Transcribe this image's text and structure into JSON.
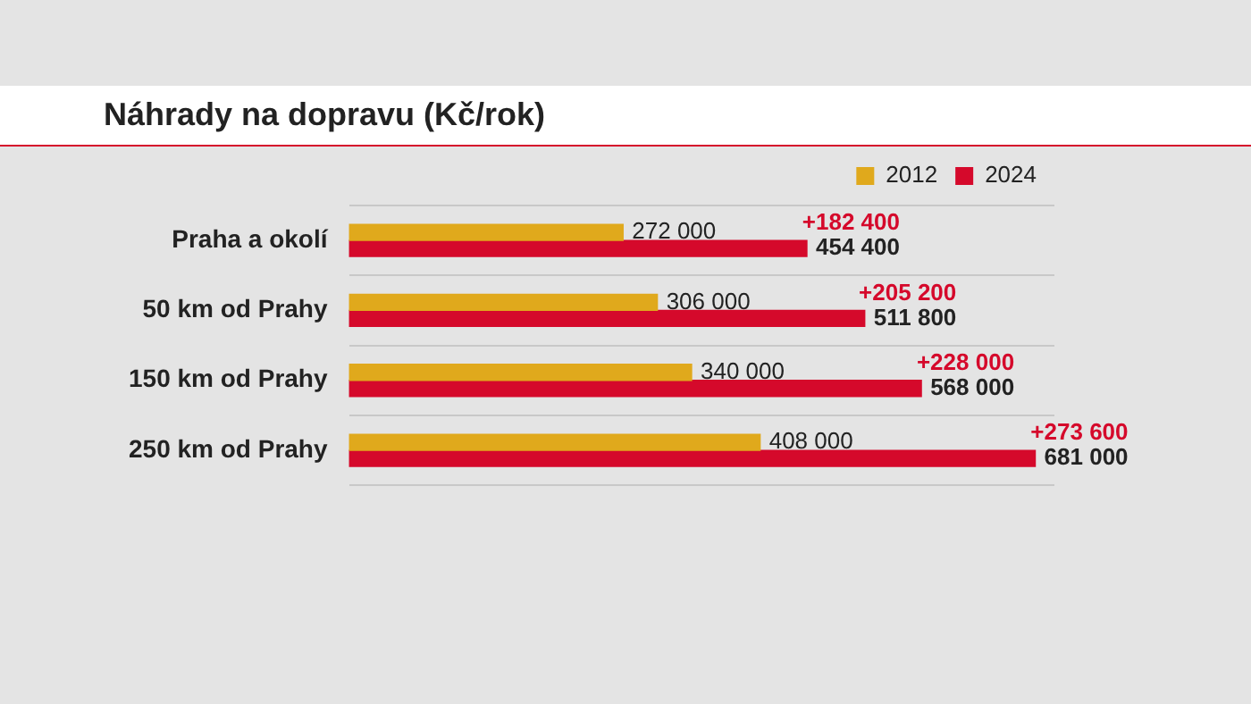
{
  "chart_data": {
    "type": "bar",
    "orientation": "horizontal",
    "title": "Náhrady na dopravu (Kč/rok)",
    "categories": [
      "Praha a okolí",
      "50 km od Prahy",
      "150 km od Prahy",
      "250 km od Prahy"
    ],
    "series": [
      {
        "name": "2012",
        "color": "#e0a91c",
        "values": [
          272000,
          306000,
          340000,
          408000
        ],
        "value_labels": [
          "272 000",
          "306 000",
          "340 000",
          "408 000"
        ]
      },
      {
        "name": "2024",
        "color": "#d5092b",
        "values": [
          454400,
          511800,
          568000,
          681000
        ],
        "value_labels": [
          "454 400",
          "511 800",
          "568 000",
          "681 000"
        ]
      }
    ],
    "annotations": [
      {
        "text": "+182 400",
        "x": 454400,
        "y": "Praha a okolí"
      },
      {
        "text": "+205 200",
        "x": 511800,
        "y": "50 km od Prahy"
      },
      {
        "text": "+228 000",
        "x": 568000,
        "y": "150 km od Prahy"
      },
      {
        "text": "+273 600",
        "x": 681000,
        "y": "250 km od Prahy"
      }
    ],
    "grid": "y",
    "legend": "top right"
  }
}
